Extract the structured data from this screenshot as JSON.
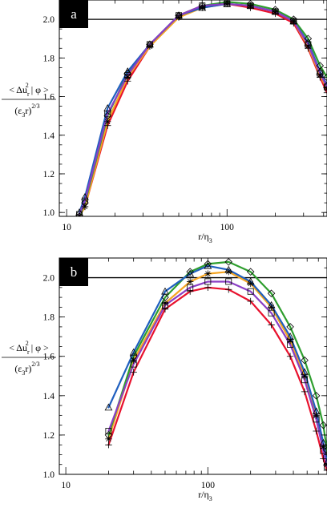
{
  "chart_data": [
    {
      "panel": "a",
      "type": "line",
      "xscale": "log",
      "xlim": [
        9,
        420
      ],
      "ylim": [
        0.98,
        2.1
      ],
      "xticks": [
        10,
        100
      ],
      "xtick_labels": [
        "10",
        "100"
      ],
      "yticks": [
        1.0,
        1.2,
        1.4,
        1.6,
        1.8,
        2.0
      ],
      "ytick_labels": [
        "1.0",
        "1.2",
        "1.4",
        "1.6",
        "1.8",
        "2.0"
      ],
      "xlabel": "r/η3",
      "ylabel": "< Δu_r^2 | φ > / (ε3 r)^2/3",
      "reference_line": 2.0,
      "grid": false,
      "series": [
        {
          "color": "#e8112d",
          "marker": "plus",
          "x": [
            12,
            13,
            18,
            24,
            33,
            50,
            70,
            100,
            140,
            200,
            260,
            320,
            380,
            420
          ],
          "y": [
            0.98,
            1.03,
            1.45,
            1.68,
            1.86,
            2.02,
            2.07,
            2.08,
            2.06,
            2.03,
            1.98,
            1.85,
            1.7,
            1.62
          ]
        },
        {
          "color": "#f5a623",
          "marker": "asterisk",
          "x": [
            12,
            13,
            18,
            24,
            33,
            50,
            70,
            100,
            140,
            200,
            260,
            320,
            380,
            420
          ],
          "y": [
            0.98,
            1.03,
            1.47,
            1.7,
            1.86,
            2.01,
            2.06,
            2.08,
            2.07,
            2.04,
            1.99,
            1.86,
            1.71,
            1.64
          ]
        },
        {
          "color": "#2e9e2e",
          "marker": "diamond",
          "x": [
            12,
            13,
            18,
            24,
            33,
            50,
            70,
            100,
            140,
            200,
            260,
            320,
            380,
            420
          ],
          "y": [
            0.98,
            1.05,
            1.5,
            1.72,
            1.87,
            2.02,
            2.07,
            2.09,
            2.08,
            2.05,
            2.0,
            1.9,
            1.76,
            1.7
          ]
        },
        {
          "color": "#1f5fbf",
          "marker": "triangle",
          "x": [
            12,
            13,
            18,
            24,
            33,
            50,
            70,
            100,
            140,
            200,
            260,
            320,
            380,
            420
          ],
          "y": [
            1.0,
            1.08,
            1.54,
            1.73,
            1.87,
            2.02,
            2.06,
            2.08,
            2.07,
            2.04,
            1.99,
            1.88,
            1.73,
            1.66
          ]
        },
        {
          "color": "#8a3fc4",
          "marker": "square",
          "x": [
            12,
            13,
            18,
            24,
            33,
            50,
            70,
            100,
            140,
            200,
            260,
            320,
            380,
            420
          ],
          "y": [
            0.99,
            1.06,
            1.51,
            1.71,
            1.87,
            2.02,
            2.07,
            2.08,
            2.07,
            2.04,
            1.99,
            1.87,
            1.72,
            1.65
          ]
        }
      ]
    },
    {
      "panel": "b",
      "type": "line",
      "xscale": "log",
      "xlim": [
        9,
        690
      ],
      "ylim": [
        1.0,
        2.1
      ],
      "xticks": [
        10,
        100
      ],
      "xtick_labels": [
        "10",
        "100"
      ],
      "yticks": [
        1.0,
        1.2,
        1.4,
        1.6,
        1.8,
        2.0
      ],
      "ytick_labels": [
        "1.0",
        "1.2",
        "1.4",
        "1.6",
        "1.8",
        "2.0"
      ],
      "xlabel": "r/η3",
      "ylabel": "< Δu_r^2 | φ > / (ε3 r)^2/3",
      "reference_line": 2.0,
      "grid": false,
      "series": [
        {
          "color": "#e8112d",
          "marker": "plus",
          "x": [
            20,
            30,
            50,
            75,
            100,
            140,
            200,
            280,
            380,
            480,
            580,
            650,
            690
          ],
          "y": [
            1.15,
            1.52,
            1.84,
            1.93,
            1.95,
            1.94,
            1.88,
            1.76,
            1.6,
            1.42,
            1.22,
            1.08,
            1.02
          ]
        },
        {
          "color": "#f5a623",
          "marker": "asterisk",
          "x": [
            20,
            30,
            50,
            75,
            100,
            140,
            200,
            280,
            380,
            480,
            580,
            650,
            690
          ],
          "y": [
            1.18,
            1.58,
            1.87,
            1.98,
            2.02,
            2.03,
            1.97,
            1.85,
            1.68,
            1.5,
            1.3,
            1.14,
            1.05
          ]
        },
        {
          "color": "#2e9e2e",
          "marker": "diamond",
          "x": [
            20,
            30,
            50,
            75,
            100,
            140,
            200,
            280,
            380,
            480,
            580,
            650,
            690
          ],
          "y": [
            1.2,
            1.6,
            1.9,
            2.03,
            2.07,
            2.08,
            2.03,
            1.92,
            1.75,
            1.58,
            1.4,
            1.25,
            1.12
          ]
        },
        {
          "color": "#1f5fbf",
          "marker": "triangle",
          "x": [
            20,
            30,
            50,
            75,
            100,
            140,
            200,
            280,
            380,
            480,
            580,
            650,
            690
          ],
          "y": [
            1.34,
            1.62,
            1.93,
            2.02,
            2.06,
            2.04,
            1.98,
            1.86,
            1.7,
            1.52,
            1.32,
            1.16,
            1.06
          ]
        },
        {
          "color": "#8a3fc4",
          "marker": "square",
          "x": [
            20,
            30,
            50,
            75,
            100,
            140,
            200,
            280,
            380,
            480,
            580,
            650,
            690
          ],
          "y": [
            1.22,
            1.56,
            1.86,
            1.95,
            1.98,
            1.98,
            1.93,
            1.82,
            1.66,
            1.48,
            1.28,
            1.12,
            1.04
          ]
        }
      ]
    }
  ]
}
